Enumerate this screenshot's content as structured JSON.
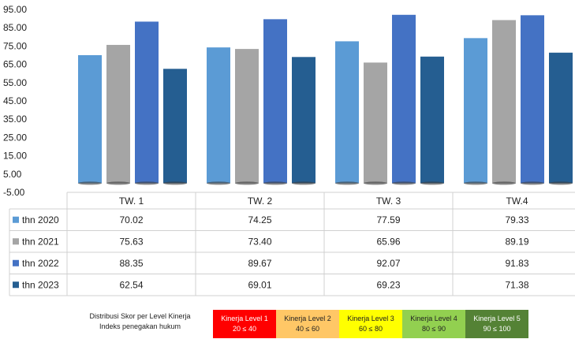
{
  "chart_data": {
    "type": "bar",
    "categories": [
      "TW. 1",
      "TW. 2",
      "TW. 3",
      "TW.4"
    ],
    "series": [
      {
        "name": "thn 2020",
        "values": [
          "70.02",
          "74.25",
          "77.59",
          "79.33"
        ],
        "color": "#5b9bd5"
      },
      {
        "name": "thn 2021",
        "values": [
          "75.63",
          "73.40",
          "65.96",
          "89.19"
        ],
        "color": "#a5a5a5"
      },
      {
        "name": "thn 2022",
        "values": [
          "88.35",
          "89.67",
          "92.07",
          "91.83"
        ],
        "color": "#4472c4"
      },
      {
        "name": "thn 2023",
        "values": [
          "62.54",
          "69.01",
          "69.23",
          "71.38"
        ],
        "color": "#255e91"
      }
    ],
    "yticks": [
      "95.00",
      "85.00",
      "75.00",
      "65.00",
      "55.00",
      "45.00",
      "35.00",
      "25.00",
      "15.00",
      "5.00",
      "-5.00"
    ],
    "ylim": [
      -5,
      95
    ],
    "grid": false,
    "legend": "data-table"
  },
  "footer": {
    "note_line1": "Distribusi Skor per Level Kinerja",
    "note_line2": "Indeks penegakan hukum",
    "levels": [
      {
        "name": "Kinerja Level 1",
        "range": "20 ≤ 40",
        "bg": "#ff0000",
        "fg": "#ffffff"
      },
      {
        "name": "Kinerja Level 2",
        "range": "40 ≤ 60",
        "bg": "#ffc766",
        "fg": "#222222"
      },
      {
        "name": "Kinerja Level 3",
        "range": "60 ≤ 80",
        "bg": "#ffff00",
        "fg": "#222222"
      },
      {
        "name": "Kinerja Level 4",
        "range": "80 ≤ 90",
        "bg": "#92d050",
        "fg": "#222222"
      },
      {
        "name": "Kinerja Level 5",
        "range": "90 ≤ 100",
        "bg": "#548235",
        "fg": "#ffffff"
      }
    ]
  }
}
